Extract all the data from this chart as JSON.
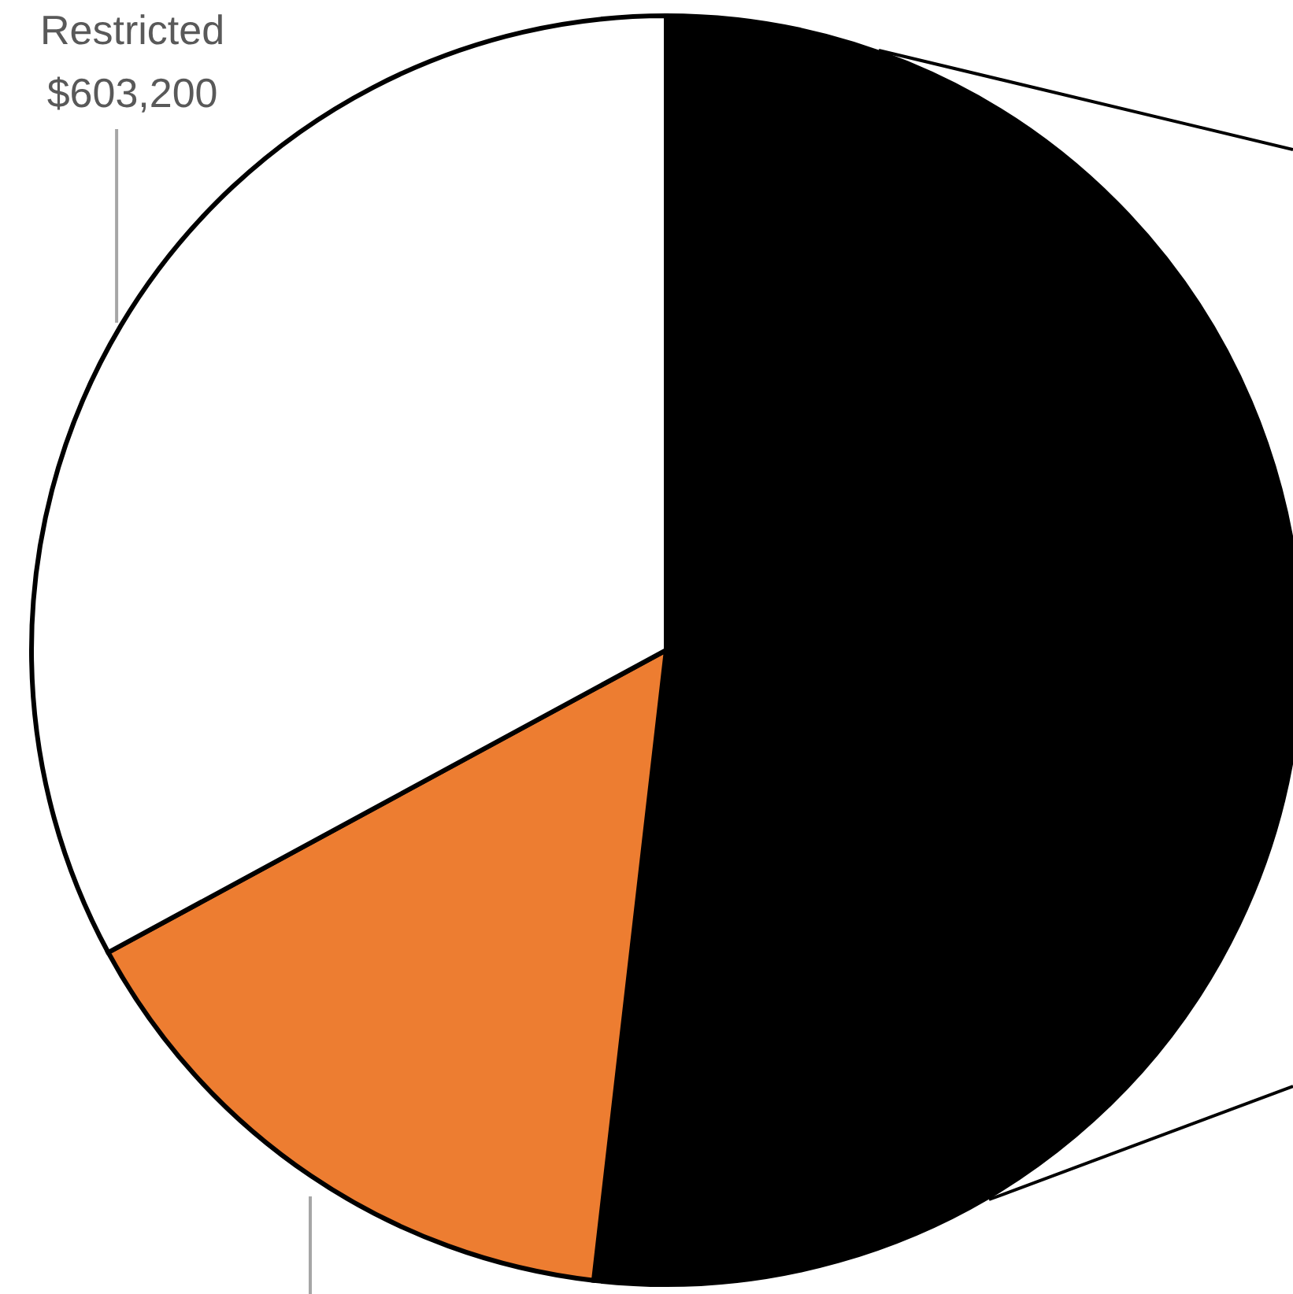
{
  "chart_data": {
    "type": "pie",
    "categories": [
      null,
      null,
      "Restricted"
    ],
    "values": [
      950000,
      280000,
      603200
    ],
    "value_labels": [
      null,
      null,
      "$603,200"
    ],
    "colors": [
      "#000000",
      "#ed7d31",
      "#ffffff"
    ],
    "legend": false
  }
}
